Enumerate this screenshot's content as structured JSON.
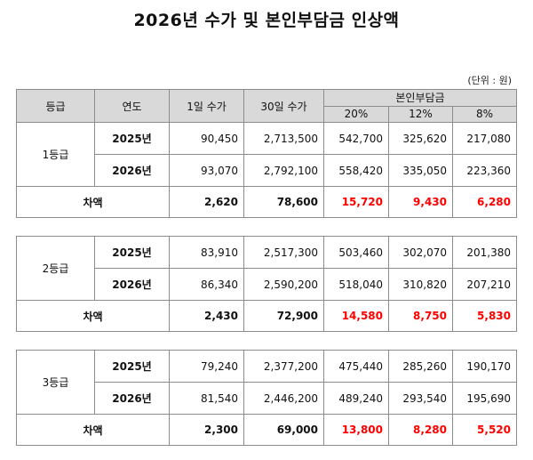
{
  "title": "2026년 수가 및 본인부담금 인상액",
  "unit": "(단위 : 원)",
  "headers": {
    "grade": "등급",
    "year": "연도",
    "fee_1day": "1일 수가",
    "fee_30day": "30일 수가",
    "copay": "본인부담금",
    "copay_20": "20%",
    "copay_12": "12%",
    "copay_8": "8%"
  },
  "sections": [
    {
      "grade": "1등급",
      "rows": [
        {
          "year": "2025년",
          "fee_1day": "90,450",
          "fee_30day": "2,713,500",
          "c20": "542,700",
          "c12": "325,620",
          "c8": "217,080"
        },
        {
          "year": "2026년",
          "fee_1day": "93,070",
          "fee_30day": "2,792,100",
          "c20": "558,420",
          "c12": "335,050",
          "c8": "223,360"
        }
      ],
      "diff": {
        "label": "차액",
        "fee_1day": "2,620",
        "fee_30day": "78,600",
        "c20": "15,720",
        "c12": "9,430",
        "c8": "6,280"
      }
    },
    {
      "grade": "2등급",
      "rows": [
        {
          "year": "2025년",
          "fee_1day": "83,910",
          "fee_30day": "2,517,300",
          "c20": "503,460",
          "c12": "302,070",
          "c8": "201,380"
        },
        {
          "year": "2026년",
          "fee_1day": "86,340",
          "fee_30day": "2,590,200",
          "c20": "518,040",
          "c12": "310,820",
          "c8": "207,210"
        }
      ],
      "diff": {
        "label": "차액",
        "fee_1day": "2,430",
        "fee_30day": "72,900",
        "c20": "14,580",
        "c12": "8,750",
        "c8": "5,830"
      }
    },
    {
      "grade": "3등급",
      "rows": [
        {
          "year": "2025년",
          "fee_1day": "79,240",
          "fee_30day": "2,377,200",
          "c20": "475,440",
          "c12": "285,260",
          "c8": "190,170"
        },
        {
          "year": "2026년",
          "fee_1day": "81,540",
          "fee_30day": "2,446,200",
          "c20": "489,240",
          "c12": "293,540",
          "c8": "195,690"
        }
      ],
      "diff": {
        "label": "차액",
        "fee_1day": "2,300",
        "fee_30day": "69,000",
        "c20": "13,800",
        "c12": "8,280",
        "c8": "5,520"
      }
    }
  ]
}
